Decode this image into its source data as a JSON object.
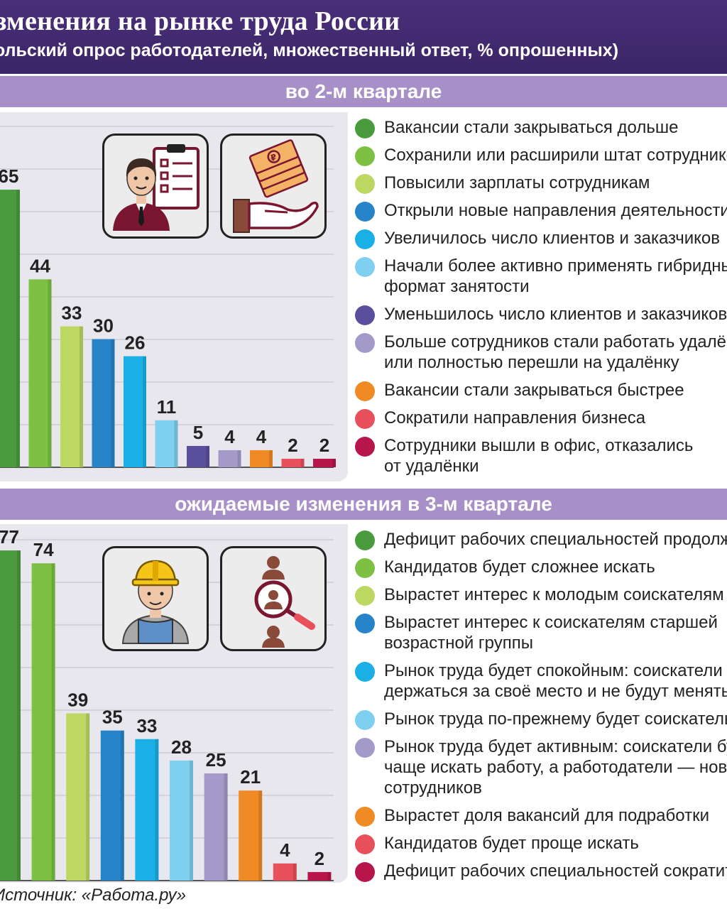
{
  "header": {
    "title": "зменения на рынке труда России",
    "subtitle": "ольский опрос работодателей, множественный ответ, % опрошенных)"
  },
  "source": "Источник: «Работа.ру»",
  "icons": [
    "recruiter-checklist-icon",
    "money-hand-icon",
    "worker-helmet-icon",
    "candidate-search-icon"
  ],
  "chart_data": [
    {
      "type": "bar",
      "title": "во 2-м квартале",
      "ylim": [
        0,
        70
      ],
      "grid": true,
      "legend_placement": "right",
      "categories": [
        "Вакансии стали закрываться дольше",
        "Сохранили или расширили штат сотрудников",
        "Повысили зарплаты сотрудникам",
        "Открыли новые направления деятельности",
        "Увеличилось число клиентов и заказчиков",
        "Начали более активно применять гибридный формат занятости",
        "Уменьшилось число клиентов и заказчиков",
        "Больше сотрудников стали работать удалённо или полностью перешли на удалёнку",
        "Вакансии стали закрываться быстрее",
        "Сократили направления бизнеса",
        "Сотрудники вышли в офис, отказались от удалёнки"
      ],
      "legend_lines": [
        [
          "Вакансии стали закрываться дольше"
        ],
        [
          "Сохранили или расширили штат сотрудников"
        ],
        [
          "Повысили зарплаты сотрудникам"
        ],
        [
          "Открыли новые направления деятельности"
        ],
        [
          "Увеличилось число клиентов и заказчиков"
        ],
        [
          "Начали более активно применять гибридный",
          "формат занятости"
        ],
        [
          "Уменьшилось число клиентов и заказчиков"
        ],
        [
          "Больше сотрудников стали работать удалённо",
          "или полностью перешли на удалёнку"
        ],
        [
          "Вакансии стали закрываться быстрее"
        ],
        [
          "Сократили направления бизнеса"
        ],
        [
          "Сотрудники вышли в офис, отказались",
          "от удалёнки"
        ]
      ],
      "values": [
        65,
        44,
        33,
        30,
        26,
        11,
        5,
        4,
        4,
        2,
        2
      ],
      "colors": [
        "#4a9a3e",
        "#7dc043",
        "#bcd863",
        "#2784c9",
        "#1ab0e6",
        "#7fd0f0",
        "#5a4f9c",
        "#a39ac9",
        "#f08a24",
        "#e8505b",
        "#b7164a"
      ]
    },
    {
      "type": "bar",
      "title": "ожидаемые изменения в 3-м квартале",
      "ylim": [
        0,
        80
      ],
      "grid": true,
      "legend_placement": "right",
      "categories": [
        "Дефицит рабочих специальностей продолжи",
        "Кандидатов будет сложнее искать",
        "Вырастет интерес к молодым соискателям",
        "Вырастет интерес к соискателям старшей возрастной группы",
        "Рынок труда будет спокойным: соискатели буд держаться за своё место и не будут менять раб",
        "Рынок труда по-прежнему будет соискательски",
        "Рынок труда будет активным: соискатели буд чаще искать работу, а работодатели — новых сотрудников",
        "Вырастет доля вакансий для подработки",
        "Кандидатов будет проще искать",
        "Дефицит рабочих специальностей сократитс"
      ],
      "legend_lines": [
        [
          "Дефицит рабочих специальностей продолжи"
        ],
        [
          "Кандидатов будет сложнее искать"
        ],
        [
          "Вырастет интерес к молодым соискателям"
        ],
        [
          "Вырастет интерес к соискателям старшей",
          "возрастной группы"
        ],
        [
          "Рынок труда будет спокойным: соискатели буд",
          "держаться за своё место и не будут менять раб"
        ],
        [
          "Рынок труда по-прежнему будет соискательски"
        ],
        [
          "Рынок труда будет активным: соискатели буд",
          "чаще искать работу, а работодатели — новых",
          "сотрудников"
        ],
        [
          "Вырастет доля вакансий для подработки"
        ],
        [
          "Кандидатов будет проще искать"
        ],
        [
          "Дефицит рабочих специальностей сократитс"
        ]
      ],
      "values": [
        77,
        74,
        39,
        35,
        33,
        28,
        25,
        21,
        4,
        2
      ],
      "colors": [
        "#4a9a3e",
        "#7dc043",
        "#bcd863",
        "#2784c9",
        "#1ab0e6",
        "#7fd0f0",
        "#a39ac9",
        "#f08a24",
        "#e8505b",
        "#b7164a"
      ]
    }
  ]
}
